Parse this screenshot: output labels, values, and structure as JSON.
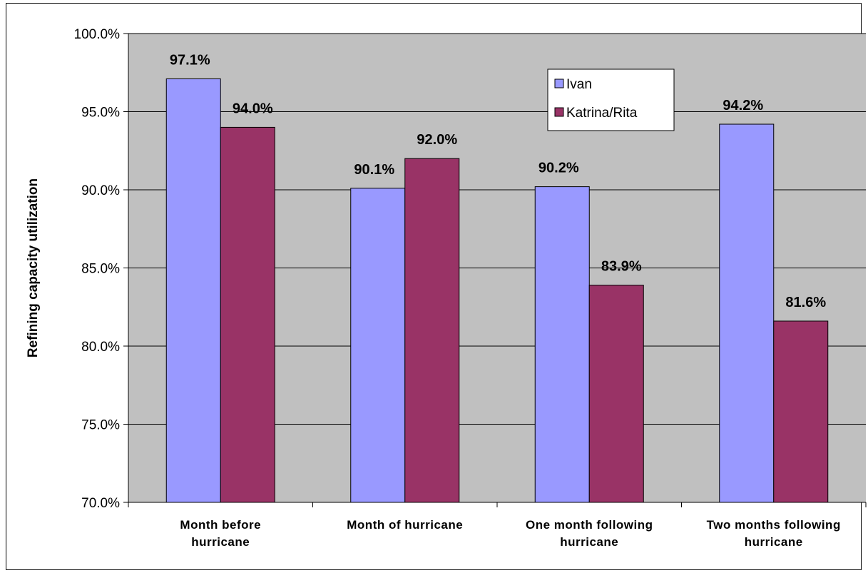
{
  "chart_data": {
    "type": "bar",
    "categories": [
      [
        "Month before",
        "hurricane"
      ],
      [
        "Month of hurricane"
      ],
      [
        "One month following",
        "hurricane"
      ],
      [
        "Two months following",
        "hurricane"
      ]
    ],
    "series": [
      {
        "name": "Ivan",
        "values": [
          97.1,
          90.1,
          90.2,
          94.2
        ],
        "labels": [
          "97.1%",
          "90.1%",
          "90.2%",
          "94.2%"
        ],
        "color": "#9999ff"
      },
      {
        "name": "Katrina/Rita",
        "values": [
          94.0,
          92.0,
          83.9,
          81.6
        ],
        "labels": [
          "94.0%",
          "92.0%",
          "83.9%",
          "81.6%"
        ],
        "color": "#993366"
      }
    ],
    "ylabel": "Refining capacity utilization",
    "xlabel": "",
    "ylim": [
      70,
      100
    ],
    "yticks": [
      "70.0%",
      "75.0%",
      "80.0%",
      "85.0%",
      "90.0%",
      "95.0%",
      "100.0%"
    ],
    "ytick_values": [
      70,
      75,
      80,
      85,
      90,
      95,
      100
    ],
    "grid": true,
    "legend": "top-right",
    "plot_background": "#c0c0c0"
  }
}
